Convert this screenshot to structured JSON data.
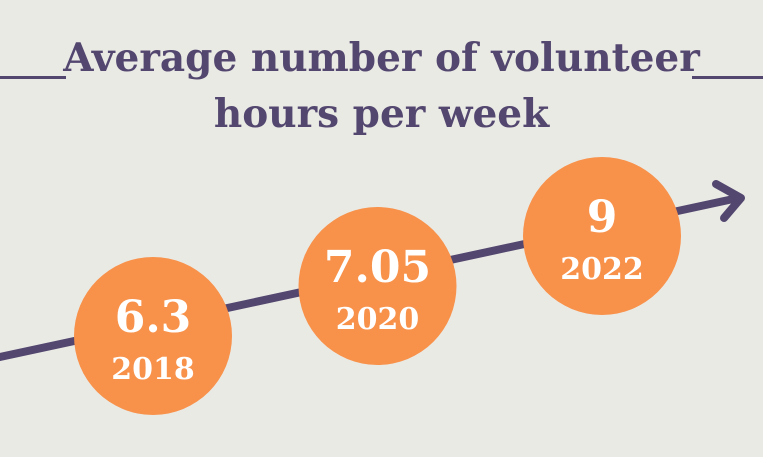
{
  "chart_data": {
    "type": "line",
    "title": "Average number of volunteer hours per week",
    "x": [
      "2018",
      "2020",
      "2022"
    ],
    "values": [
      6.3,
      7.05,
      9
    ],
    "value_labels": [
      "6.3",
      "7.05",
      "9"
    ]
  },
  "colors": {
    "background": "#eaeae5",
    "accent": "#53476f",
    "bubble": "#f8914a",
    "bubble_text": "#ffffff"
  }
}
